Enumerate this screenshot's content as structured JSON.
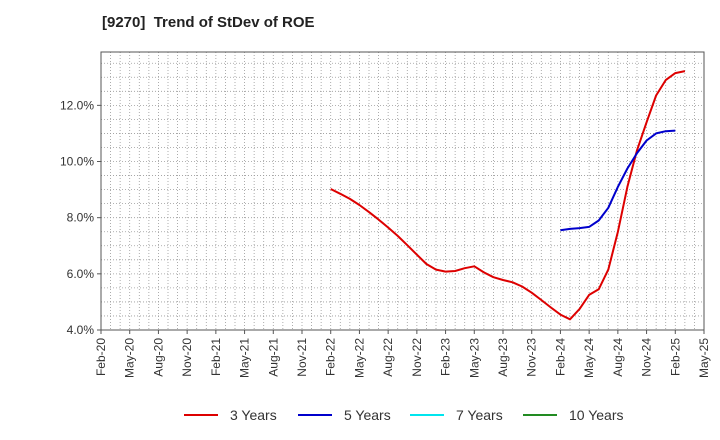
{
  "chart_data": {
    "type": "line",
    "title": "[9270]  Trend of StDev of ROE",
    "xlabel": "",
    "ylabel": "",
    "x_ticks": [
      "Feb-20",
      "May-20",
      "Aug-20",
      "Nov-20",
      "Feb-21",
      "May-21",
      "Aug-21",
      "Nov-21",
      "Feb-22",
      "May-22",
      "Aug-22",
      "Nov-22",
      "Feb-23",
      "May-23",
      "Aug-23",
      "Nov-23",
      "Feb-24",
      "May-24",
      "Aug-24",
      "Nov-24",
      "Feb-25",
      "May-25"
    ],
    "y_ticks": [
      "4.0%",
      "6.0%",
      "8.0%",
      "10.0%",
      "12.0%"
    ],
    "ylim": [
      4.0,
      13.9
    ],
    "grid": true,
    "legend_position": "bottom",
    "series": [
      {
        "name": "3 Years",
        "color": "#dd0000",
        "points": [
          [
            "Feb-22",
            9.02
          ],
          [
            "Mar-22",
            8.85
          ],
          [
            "Apr-22",
            8.67
          ],
          [
            "May-22",
            8.45
          ],
          [
            "Jun-22",
            8.2
          ],
          [
            "Jul-22",
            7.93
          ],
          [
            "Aug-22",
            7.65
          ],
          [
            "Sep-22",
            7.35
          ],
          [
            "Oct-22",
            7.02
          ],
          [
            "Nov-22",
            6.68
          ],
          [
            "Dec-22",
            6.35
          ],
          [
            "Jan-23",
            6.15
          ],
          [
            "Feb-23",
            6.08
          ],
          [
            "Mar-23",
            6.1
          ],
          [
            "Apr-23",
            6.2
          ],
          [
            "May-23",
            6.27
          ],
          [
            "Jun-23",
            6.05
          ],
          [
            "Jul-23",
            5.88
          ],
          [
            "Aug-23",
            5.78
          ],
          [
            "Sep-23",
            5.7
          ],
          [
            "Oct-23",
            5.55
          ],
          [
            "Nov-23",
            5.33
          ],
          [
            "Dec-23",
            5.07
          ],
          [
            "Jan-24",
            4.8
          ],
          [
            "Feb-24",
            4.55
          ],
          [
            "Mar-24",
            4.38
          ],
          [
            "Apr-24",
            4.75
          ],
          [
            "May-24",
            5.25
          ],
          [
            "Jun-24",
            5.45
          ],
          [
            "Jul-24",
            6.15
          ],
          [
            "Aug-24",
            7.5
          ],
          [
            "Sep-24",
            9.1
          ],
          [
            "Oct-24",
            10.4
          ],
          [
            "Nov-24",
            11.4
          ],
          [
            "Dec-24",
            12.35
          ],
          [
            "Jan-25",
            12.9
          ],
          [
            "Feb-25",
            13.15
          ],
          [
            "Mar-25",
            13.22
          ]
        ]
      },
      {
        "name": "5 Years",
        "color": "#0000cc",
        "points": [
          [
            "Feb-24",
            7.55
          ],
          [
            "Mar-24",
            7.6
          ],
          [
            "Apr-24",
            7.63
          ],
          [
            "May-24",
            7.67
          ],
          [
            "Jun-24",
            7.9
          ],
          [
            "Jul-24",
            8.35
          ],
          [
            "Aug-24",
            9.1
          ],
          [
            "Sep-24",
            9.75
          ],
          [
            "Oct-24",
            10.3
          ],
          [
            "Nov-24",
            10.75
          ],
          [
            "Dec-24",
            11.0
          ],
          [
            "Jan-25",
            11.08
          ],
          [
            "Feb-25",
            11.1
          ]
        ]
      },
      {
        "name": "7 Years",
        "color": "#00e5ee",
        "points": []
      },
      {
        "name": "10 Years",
        "color": "#228b22",
        "points": []
      }
    ]
  }
}
